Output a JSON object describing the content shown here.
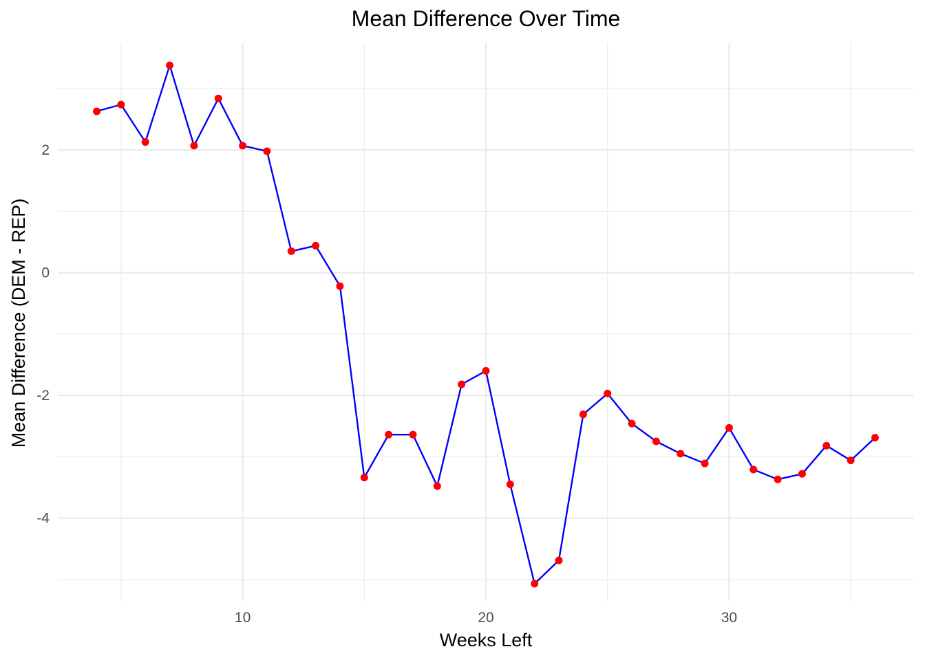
{
  "chart_data": {
    "type": "line",
    "title": "Mean Difference Over Time",
    "xlabel": "Weeks Left",
    "ylabel": "Mean Difference (DEM - REP)",
    "xlim": [
      2.4,
      37.6
    ],
    "ylim": [
      -5.35,
      3.75
    ],
    "x_ticks": [
      10,
      20,
      30
    ],
    "x_minor_ticks": [
      5,
      15,
      25,
      35
    ],
    "y_ticks": [
      -4,
      -2,
      0,
      2
    ],
    "y_minor_ticks": [
      -5,
      -3,
      -1,
      1,
      3
    ],
    "grid": true,
    "legend": "none",
    "line_color": "#0000ff",
    "point_color": "#ff0000",
    "series": [
      {
        "name": "Mean Difference",
        "x": [
          4,
          5,
          6,
          7,
          8,
          9,
          10,
          11,
          12,
          13,
          14,
          15,
          16,
          17,
          18,
          19,
          20,
          21,
          22,
          23,
          24,
          25,
          26,
          27,
          28,
          29,
          30,
          31,
          32,
          33,
          34,
          35,
          36
        ],
        "y": [
          2.63,
          2.74,
          2.13,
          3.38,
          2.07,
          2.84,
          2.07,
          1.98,
          0.35,
          0.44,
          -0.22,
          -3.34,
          -2.64,
          -2.64,
          -3.48,
          -1.82,
          -1.6,
          -3.45,
          -5.07,
          -4.69,
          -2.31,
          -1.97,
          -2.46,
          -2.75,
          -2.95,
          -3.11,
          -2.53,
          -3.21,
          -3.37,
          -3.28,
          -2.82,
          -3.06,
          -2.69
        ]
      }
    ]
  }
}
